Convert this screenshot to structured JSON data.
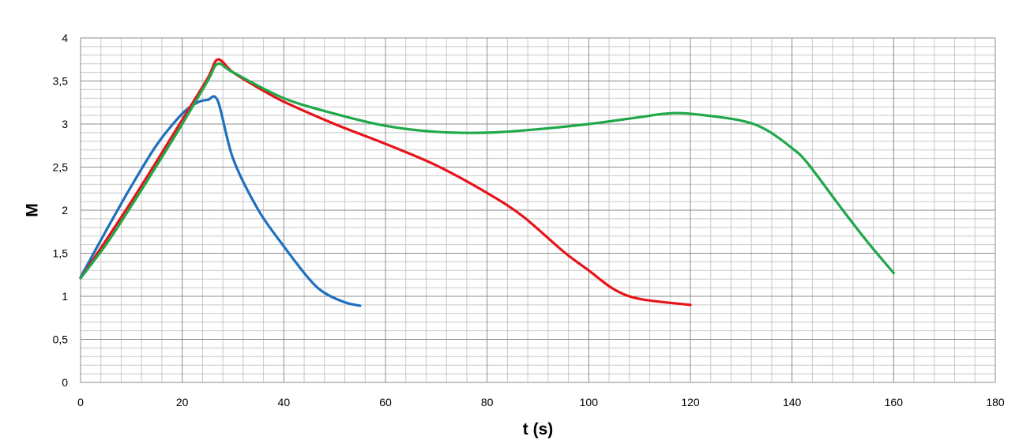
{
  "chart_data": {
    "type": "line",
    "title": "",
    "xlabel": "t (s)",
    "ylabel": "M",
    "xlim": [
      0,
      180
    ],
    "ylim": [
      0,
      4
    ],
    "x_ticks": [
      0,
      20,
      40,
      60,
      80,
      100,
      120,
      140,
      160,
      180
    ],
    "x_tick_labels": [
      "0",
      "20",
      "40",
      "60",
      "80",
      "100",
      "120",
      "140",
      "160",
      "180"
    ],
    "y_ticks": [
      0,
      0.5,
      1,
      1.5,
      2,
      2.5,
      3,
      3.5,
      4
    ],
    "y_tick_labels": [
      "0",
      "0,5",
      "1",
      "1,5",
      "2",
      "2,5",
      "3",
      "3,5",
      "4"
    ],
    "grid": true,
    "grid_minor": true,
    "legend": "none",
    "series": [
      {
        "color": "#1F6FBF",
        "x": [
          0,
          5,
          10,
          15,
          20,
          23,
          25,
          27,
          30,
          35,
          40,
          45,
          48,
          52,
          55
        ],
        "y": [
          1.22,
          1.76,
          2.28,
          2.76,
          3.12,
          3.25,
          3.28,
          3.27,
          2.6,
          2.0,
          1.58,
          1.2,
          1.04,
          0.93,
          0.89
        ]
      },
      {
        "color": "#E8121A",
        "x": [
          0,
          5,
          10,
          15,
          20,
          25,
          27,
          30,
          35,
          40,
          50,
          60,
          70,
          80,
          87,
          95,
          100,
          105,
          110,
          120
        ],
        "y": [
          1.21,
          1.65,
          2.1,
          2.57,
          3.05,
          3.53,
          3.75,
          3.6,
          3.42,
          3.26,
          3.0,
          2.77,
          2.52,
          2.2,
          1.93,
          1.52,
          1.3,
          1.08,
          0.97,
          0.9
        ]
      },
      {
        "color": "#1FA84A",
        "x": [
          0,
          5,
          10,
          15,
          20,
          25,
          27,
          30,
          40,
          50,
          60,
          70,
          80,
          90,
          100,
          110,
          115,
          120,
          130,
          135,
          140,
          143,
          150,
          155,
          160
        ],
        "y": [
          1.21,
          1.6,
          2.05,
          2.52,
          3.0,
          3.5,
          3.7,
          3.6,
          3.3,
          3.12,
          2.98,
          2.91,
          2.9,
          2.94,
          3.0,
          3.08,
          3.12,
          3.12,
          3.04,
          2.93,
          2.72,
          2.55,
          2.0,
          1.62,
          1.27
        ]
      }
    ]
  }
}
